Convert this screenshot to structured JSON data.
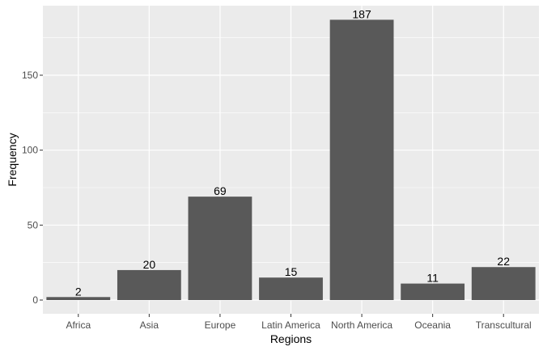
{
  "chart_data": {
    "type": "bar",
    "title": "",
    "xlabel": "Regions",
    "ylabel": "Frequency",
    "categories": [
      "Africa",
      "Asia",
      "Europe",
      "Latin America",
      "North America",
      "Oceania",
      "Transcultural"
    ],
    "values": [
      2,
      20,
      69,
      15,
      187,
      11,
      22
    ],
    "data_labels": [
      "2",
      "20",
      "69",
      "15",
      "187",
      "11",
      "22"
    ],
    "yticks": [
      0,
      50,
      100,
      150
    ],
    "ytick_labels": [
      "0",
      "50",
      "100",
      "150"
    ],
    "ylim": [
      -9.35,
      196.35
    ],
    "grid": true,
    "legend": null,
    "colors": {
      "bar": "#595959",
      "panel": "#ebebeb",
      "grid": "#ffffff"
    }
  }
}
